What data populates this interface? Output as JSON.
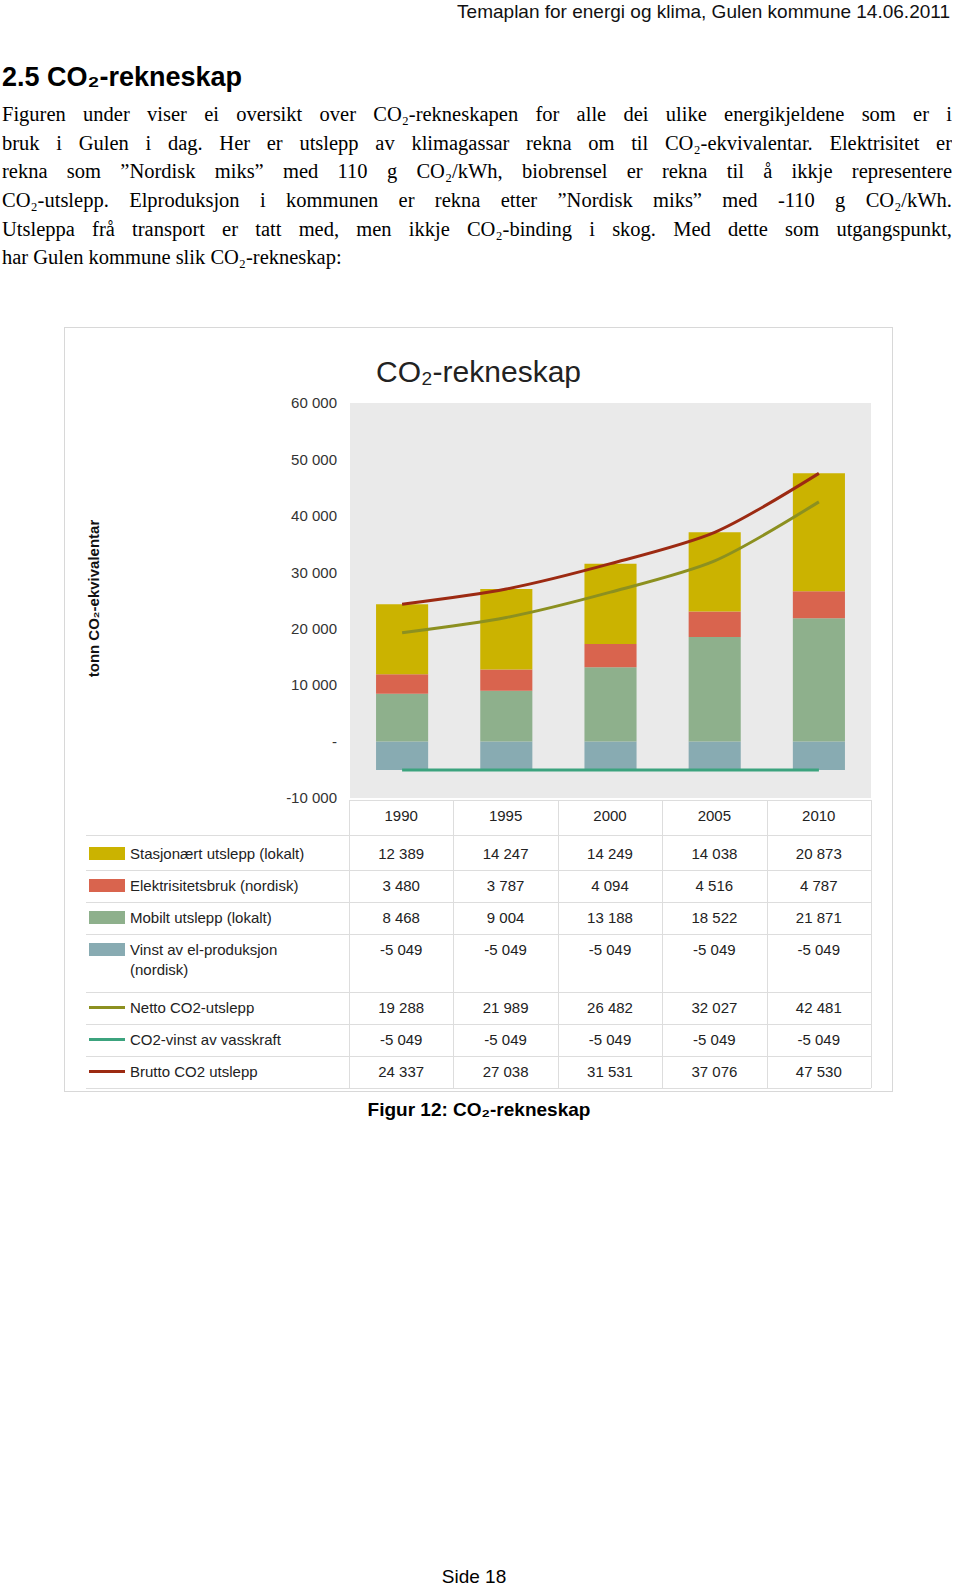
{
  "header": "Temaplan for energi og klima, Gulen kommune 14.06.2011",
  "heading": "2.5 CO₂-rekneskap",
  "paragraph": [
    "Figuren under viser ei oversikt over CO₂-rekneskapen for alle dei ulike energikjeldene som er i",
    "bruk i Gulen i dag. Her er utslepp av klimagassar rekna om til CO₂-ekvivalentar. Elektrisitet er",
    "rekna som ”Nordisk miks” med 110 g CO₂/kWh, biobrensel er rekna til å ikkje representere",
    "CO₂-utslepp. Elproduksjon i kommunen er rekna etter ”Nordisk miks” med -110 g CO₂/kWh.",
    "Utsleppa frå transport er tatt med, men ikkje CO₂-binding i skog. Med dette som utgangspunkt,",
    "har Gulen kommune slik CO₂-rekneskap:"
  ],
  "chart_data": {
    "type": "bar",
    "stacked": true,
    "grid": false,
    "title": "CO₂-rekneskap",
    "y_label": "tonn CO₂-ekvivalentar",
    "categories": [
      "1990",
      "1995",
      "2000",
      "2005",
      "2010"
    ],
    "ylim": [
      -10000,
      60000
    ],
    "yticks": [
      {
        "value": -10000,
        "label": "-10 000"
      },
      {
        "value": 0,
        "label": "-"
      },
      {
        "value": 10000,
        "label": "10 000"
      },
      {
        "value": 20000,
        "label": "20 000"
      },
      {
        "value": 30000,
        "label": "30 000"
      },
      {
        "value": 40000,
        "label": "40 000"
      },
      {
        "value": 50000,
        "label": "50 000"
      },
      {
        "value": 60000,
        "label": "60 000"
      }
    ],
    "series": [
      {
        "name": "Stasjonært utslepp (lokalt)",
        "type": "bar",
        "color": "#cbb300",
        "values": [
          12389,
          14247,
          14249,
          14038,
          20873
        ],
        "value_labels": [
          "12 389",
          "14 247",
          "14 249",
          "14 038",
          "20 873"
        ]
      },
      {
        "name": "Elektrisitetsbruk (nordisk)",
        "type": "bar",
        "color": "#d9644e",
        "values": [
          3480,
          3787,
          4094,
          4516,
          4787
        ],
        "value_labels": [
          "3 480",
          "3 787",
          "4 094",
          "4 516",
          "4 787"
        ]
      },
      {
        "name": "Mobilt utslepp (lokalt)",
        "type": "bar",
        "color": "#8eb08c",
        "values": [
          8468,
          9004,
          13188,
          18522,
          21871
        ],
        "value_labels": [
          "8 468",
          "9 004",
          "13 188",
          "18 522",
          "21 871"
        ]
      },
      {
        "name": "Vinst av el-produksjon (nordisk)",
        "type": "bar",
        "color": "#88abb2",
        "values": [
          -5049,
          -5049,
          -5049,
          -5049,
          -5049
        ],
        "value_labels": [
          "-5 049",
          "-5 049",
          "-5 049",
          "-5 049",
          "-5 049"
        ]
      },
      {
        "name": "Netto CO2-utslepp",
        "type": "line",
        "color": "#8c9020",
        "values": [
          19288,
          21989,
          26482,
          32027,
          42481
        ],
        "value_labels": [
          "19 288",
          "21 989",
          "26 482",
          "32 027",
          "42 481"
        ]
      },
      {
        "name": "CO2-vinst av vasskraft",
        "type": "line",
        "color": "#3ca37e",
        "values": [
          -5049,
          -5049,
          -5049,
          -5049,
          -5049
        ],
        "value_labels": [
          "-5 049",
          "-5 049",
          "-5 049",
          "-5 049",
          "-5 049"
        ]
      },
      {
        "name": "Brutto CO2 utslepp",
        "type": "line",
        "color": "#9c2a12",
        "values": [
          24337,
          27038,
          31531,
          37076,
          47530
        ],
        "value_labels": [
          "24 337",
          "27 038",
          "31 531",
          "37 076",
          "47 530"
        ]
      }
    ]
  },
  "caption": "Figur 12: CO₂-rekneskap",
  "footer": "Side 18"
}
